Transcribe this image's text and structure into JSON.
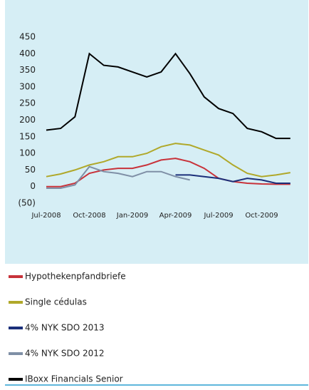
{
  "chart_data": {
    "type": "line",
    "x": [
      "2008-07",
      "2008-08",
      "2008-09",
      "2008-10",
      "2008-11",
      "2008-12",
      "2009-01",
      "2009-02",
      "2009-03",
      "2009-04",
      "2009-05",
      "2009-06",
      "2009-07",
      "2009-08",
      "2009-09",
      "2009-10",
      "2009-11",
      "2009-12"
    ],
    "series": [
      {
        "name": "Hypothekenpfandbriefe",
        "color": "#c8323a",
        "values": [
          0,
          0,
          10,
          40,
          50,
          55,
          55,
          65,
          80,
          85,
          75,
          55,
          25,
          15,
          10,
          8,
          7,
          7
        ]
      },
      {
        "name": "Single cédulas",
        "color": "#b0a82a",
        "values": [
          30,
          38,
          50,
          65,
          75,
          90,
          90,
          100,
          120,
          130,
          125,
          110,
          95,
          65,
          40,
          30,
          35,
          42
        ]
      },
      {
        "name": "4% NYK SDO 2013",
        "color": "#1b2f7a",
        "values": [
          null,
          null,
          null,
          null,
          null,
          null,
          null,
          null,
          null,
          35,
          35,
          30,
          25,
          15,
          25,
          20,
          10,
          10
        ]
      },
      {
        "name": "4% NYK SDO 2012",
        "color": "#7f8fa6",
        "values": [
          -5,
          -5,
          5,
          60,
          45,
          40,
          30,
          45,
          45,
          30,
          20,
          null,
          null,
          null,
          null,
          null,
          null,
          null
        ]
      },
      {
        "name": "IBoxx Financials Senior",
        "color": "#000000",
        "values": [
          170,
          175,
          210,
          400,
          365,
          360,
          345,
          330,
          345,
          400,
          340,
          270,
          235,
          220,
          175,
          165,
          145,
          145
        ]
      }
    ],
    "xlim": [
      "2008-07",
      "2010-01"
    ],
    "xticks": [
      {
        "value": "2008-07",
        "label": "Jul-2008"
      },
      {
        "value": "2008-10",
        "label": "Oct-2008"
      },
      {
        "value": "2009-01",
        "label": "Jan-2009"
      },
      {
        "value": "2009-04",
        "label": "Apr-2009"
      },
      {
        "value": "2009-07",
        "label": "Jul-2009"
      },
      {
        "value": "2009-10",
        "label": "Oct-2009"
      }
    ],
    "ylim": [
      -50,
      450
    ],
    "yticks": [
      {
        "value": -50,
        "label": "(50)"
      },
      0,
      50,
      100,
      150,
      200,
      250,
      300,
      350,
      400,
      450
    ]
  }
}
